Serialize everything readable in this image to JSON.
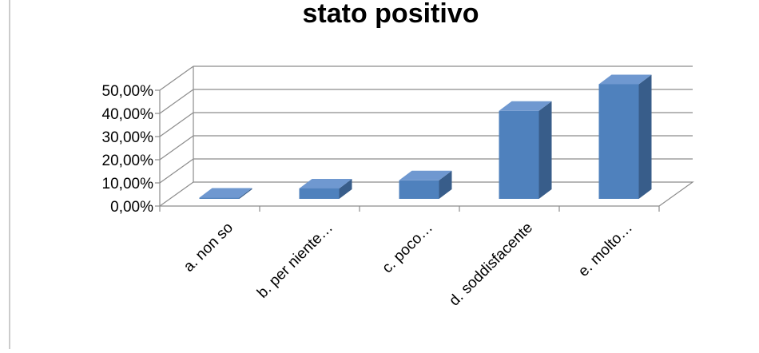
{
  "chart_data": {
    "type": "bar",
    "title": "stato positivo",
    "categories": [
      "a. non so",
      "b. per niente…",
      "c. poco…",
      "d. soddisfacente",
      "e. molto…"
    ],
    "values": [
      0.5,
      4.5,
      8.0,
      38.0,
      49.5
    ],
    "ylim": [
      0,
      50
    ],
    "yticks": [
      "0,00%",
      "10,00%",
      "20,00%",
      "30,00%",
      "40,00%",
      "50,00%"
    ],
    "grid": true,
    "legend": "none",
    "colors": {
      "front": "#4F81BD",
      "top": "#6F98D0",
      "side": "#385D8A",
      "grid": "#8C8C8C"
    }
  }
}
